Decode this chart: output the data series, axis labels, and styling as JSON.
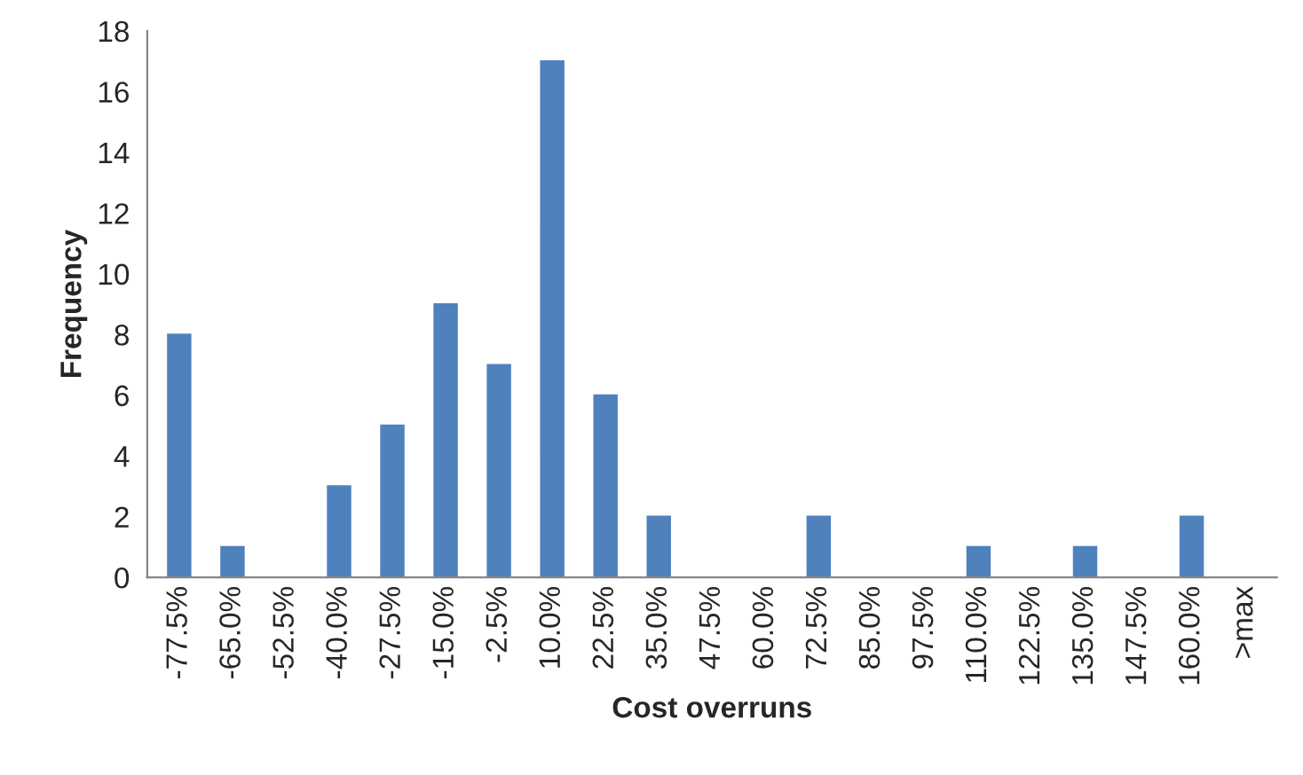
{
  "chart_data": {
    "type": "bar",
    "xlabel": "Cost overruns",
    "ylabel": "Frequency",
    "categories": [
      "-77.5%",
      "-65.0%",
      "-52.5%",
      "-40.0%",
      "-27.5%",
      "-15.0%",
      "-2.5%",
      "10.0%",
      "22.5%",
      "35.0%",
      "47.5%",
      "60.0%",
      "72.5%",
      "85.0%",
      "97.5%",
      "110.0%",
      "122.5%",
      "135.0%",
      "147.5%",
      "160.0%",
      ">max"
    ],
    "values": [
      8,
      1,
      0,
      3,
      5,
      9,
      7,
      17,
      6,
      2,
      0,
      0,
      2,
      0,
      0,
      1,
      0,
      1,
      0,
      2,
      0
    ],
    "color": "#4f81bd",
    "ylim": [
      0,
      18
    ],
    "yticks": [
      0,
      2,
      4,
      6,
      8,
      10,
      12,
      14,
      16,
      18
    ],
    "grid": false
  }
}
